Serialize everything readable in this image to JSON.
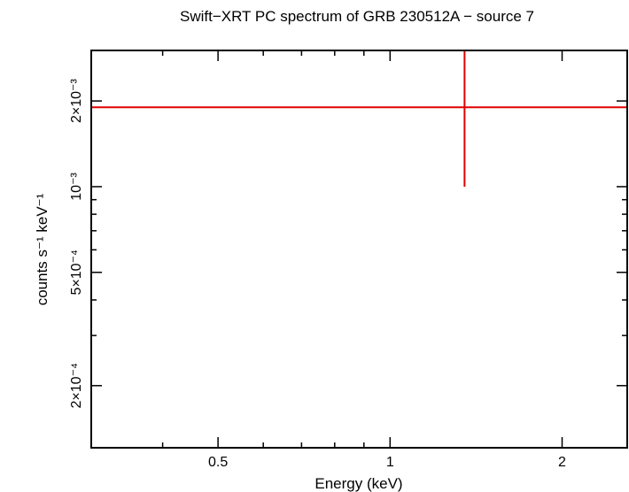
{
  "chart_data": {
    "type": "scatter",
    "title": "Swift−XRT PC spectrum of GRB 230512A − source 7",
    "xlabel": "Energy (keV)",
    "ylabel": "counts s⁻¹ keV⁻¹",
    "x_scale": "log",
    "y_scale": "log",
    "xlim": [
      0.3,
      2.6
    ],
    "ylim": [
      0.000121,
      0.00301
    ],
    "x_ticks": [
      {
        "value": 0.5,
        "label": "0.5"
      },
      {
        "value": 1,
        "label": "1"
      },
      {
        "value": 2,
        "label": "2"
      }
    ],
    "y_ticks": [
      {
        "value": 0.0002,
        "label": "2×10⁻⁴"
      },
      {
        "value": 0.0005,
        "label": "5×10⁻⁴"
      },
      {
        "value": 0.001,
        "label": "10⁻³"
      },
      {
        "value": 0.002,
        "label": "2×10⁻³"
      }
    ],
    "grid": false,
    "series": [
      {
        "color": "#e00000",
        "points": [
          {
            "x": 1.35,
            "x_lo": 0.3,
            "x_hi": 2.6,
            "y": 0.0019,
            "y_lo": 0.001,
            "y_hi": 0.00301
          }
        ]
      }
    ]
  }
}
